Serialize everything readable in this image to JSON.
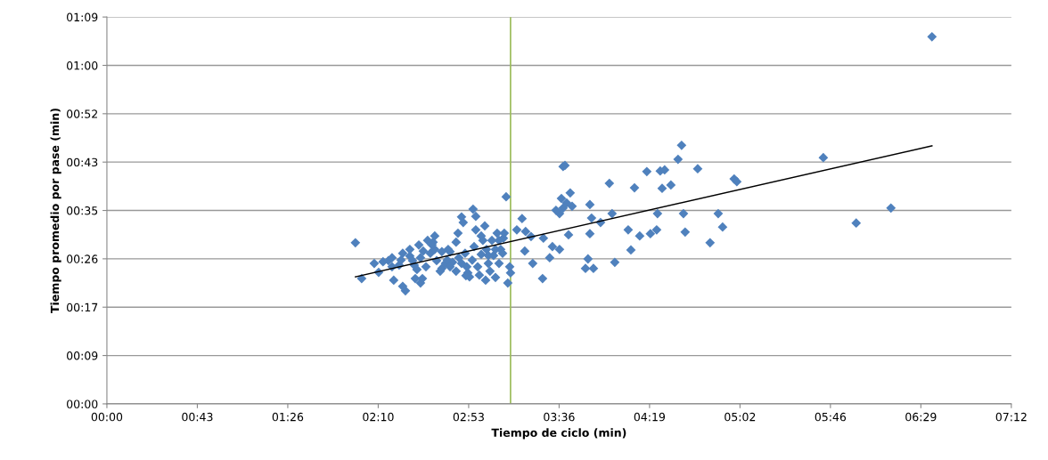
{
  "chart_data": {
    "type": "scatter",
    "xlabel": "Tiempo de ciclo (min)",
    "ylabel": "Tiempo promedio por pase (min)",
    "xlim": [
      0,
      432
    ],
    "ylim": [
      0,
      69.12
    ],
    "xticks": [
      {
        "value": 0,
        "label": "00:00"
      },
      {
        "value": 43.2,
        "label": "00:43"
      },
      {
        "value": 86.4,
        "label": "01:26"
      },
      {
        "value": 129.6,
        "label": "02:10"
      },
      {
        "value": 172.8,
        "label": "02:53"
      },
      {
        "value": 216,
        "label": "03:36"
      },
      {
        "value": 259.2,
        "label": "04:19"
      },
      {
        "value": 302.4,
        "label": "05:02"
      },
      {
        "value": 345.6,
        "label": "05:46"
      },
      {
        "value": 388.8,
        "label": "06:29"
      },
      {
        "value": 432,
        "label": "07:12"
      }
    ],
    "yticks": [
      {
        "value": 0,
        "label": "00:00"
      },
      {
        "value": 8.64,
        "label": "00:09"
      },
      {
        "value": 17.28,
        "label": "00:17"
      },
      {
        "value": 25.92,
        "label": "00:26"
      },
      {
        "value": 34.56,
        "label": "00:35"
      },
      {
        "value": 43.2,
        "label": "00:43"
      },
      {
        "value": 51.84,
        "label": "00:52"
      },
      {
        "value": 60.48,
        "label": "01:00"
      },
      {
        "value": 69.12,
        "label": "01:09"
      }
    ],
    "grid": "y",
    "marker": "diamond",
    "ref_lines": [
      {
        "axis": "x",
        "value": 192.8,
        "color": "#9bbb59"
      }
    ],
    "series": [
      {
        "color": "#4f81bd",
        "x": [
          394.1,
          342.2,
          357.9,
          374.5,
          274.5,
          272.8,
          264.3,
          266.4,
          282.2,
          269.4,
          265.2,
          257.9,
          299.6,
          300.9,
          240.0,
          252.0,
          221.3,
          217.9,
          218.8,
          292.0,
          275.4,
          263.0,
          276.2,
          288.1,
          294.1,
          262.6,
          259.6,
          254.5,
          249.0,
          242.6,
          250.3,
          230.7,
          229.8,
          232.4,
          228.6,
          241.3,
          235.8,
          231.5,
          230.7,
          222.2,
          219.6,
          217.9,
          216.2,
          214.5,
          217.1,
          208.5,
          202.6,
          212.8,
          216.2,
          211.5,
          220.5,
          203.4,
          208.1,
          190.7,
          198.3,
          200.0,
          195.8,
          199.6,
          192.8,
          191.5,
          192.4,
          118.7,
          121.7,
          127.7,
          129.8,
          131.9,
          134.5,
          136.2,
          137.0,
          139.6,
          141.3,
          142.6,
          141.3,
          144.7,
          146.0,
          146.8,
          148.1,
          147.3,
          149.8,
          149.8,
          150.7,
          151.1,
          152.4,
          154.5,
          155.8,
          156.6,
          157.5,
          159.2,
          160.0,
          161.7,
          162.6,
          163.0,
          163.9,
          165.1,
          166.8,
          167.7,
          169.4,
          170.2,
          171.1,
          171.9,
          172.4,
          173.2,
          174.5,
          175.4,
          176.2,
          176.2,
          174.9,
          177.1,
          177.9,
          178.8,
          179.6,
          180.5,
          181.3,
          182.2,
          183.0,
          183.9,
          184.7,
          185.6,
          186.4,
          187.3,
          188.1,
          189.0,
          189.4,
          180.9,
          185.6,
          171.5,
          169.4,
          166.8,
          163.9,
          160.0,
          156.6,
          155.3,
          153.2,
          149.0,
          144.7,
          140.5,
          136.2,
          168.1,
          187.3,
          182.2,
          189.8,
          178.8
        ],
        "values": [
          65.6,
          44.0,
          32.3,
          35.0,
          46.2,
          43.7,
          41.6,
          41.8,
          42.0,
          39.1,
          38.5,
          41.5,
          40.2,
          39.7,
          39.4,
          38.6,
          37.7,
          42.4,
          42.6,
          34.0,
          34.0,
          34.0,
          30.7,
          28.8,
          31.6,
          31.1,
          30.4,
          30.0,
          31.1,
          25.3,
          27.5,
          30.4,
          25.9,
          24.2,
          24.2,
          34.0,
          32.4,
          33.2,
          35.6,
          35.3,
          35.9,
          35.0,
          34.0,
          34.6,
          36.7,
          29.6,
          29.9,
          28.1,
          27.6,
          26.1,
          30.2,
          25.1,
          22.4,
          37.0,
          33.1,
          30.8,
          31.1,
          27.3,
          23.4,
          21.6,
          24.5,
          28.8,
          22.4,
          25.1,
          23.5,
          25.4,
          25.6,
          24.5,
          22.1,
          24.8,
          26.9,
          20.2,
          21.0,
          26.4,
          25.6,
          24.8,
          24.0,
          22.4,
          21.6,
          26.1,
          22.4,
          27.3,
          24.5,
          26.9,
          28.9,
          27.6,
          25.6,
          23.7,
          24.2,
          25.1,
          25.7,
          27.6,
          27.2,
          25.3,
          28.9,
          30.5,
          33.4,
          32.4,
          26.9,
          24.5,
          23.4,
          22.7,
          25.7,
          28.1,
          31.1,
          33.5,
          34.8,
          24.5,
          23.0,
          26.7,
          29.2,
          31.8,
          27.6,
          25.1,
          23.7,
          29.2,
          26.5,
          27.6,
          30.5,
          29.2,
          27.6,
          26.9,
          29.6,
          22.1,
          22.6,
          22.9,
          25.1,
          23.7,
          24.5,
          27.2,
          30.0,
          28.4,
          29.2,
          28.4,
          27.6,
          25.7,
          26.1,
          26.1,
          25.1,
          26.5,
          30.5,
          30.0
        ]
      },
      {
        "type": "line",
        "color": "#000000",
        "marker": "none",
        "x": [
          118.7,
          394.1
        ],
        "values": [
          22.7,
          46.1
        ]
      }
    ]
  }
}
